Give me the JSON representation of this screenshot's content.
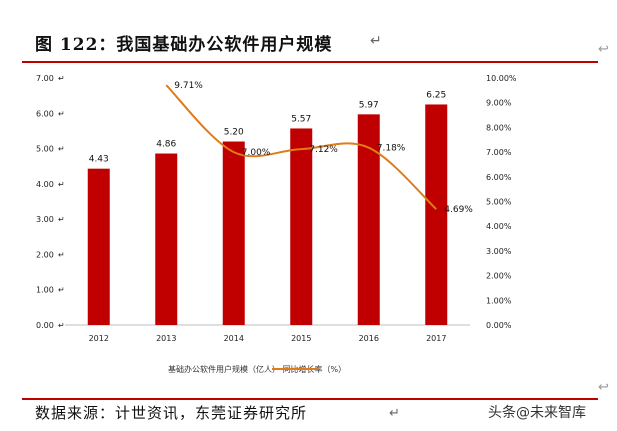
{
  "header": {
    "title": "图 122：我国基础办公软件用户规模"
  },
  "footer": {
    "source": "数据来源：计世资讯，东莞证券研究所",
    "watermark": "头条@未来智库"
  },
  "chart_data": {
    "type": "bar",
    "categories": [
      "2012",
      "2013",
      "2014",
      "2015",
      "2016",
      "2017"
    ],
    "series": [
      {
        "name": "基础办公软件用户规模（亿人）",
        "type": "bar",
        "axis": "left",
        "color": "#c00000",
        "values": [
          4.43,
          4.86,
          5.2,
          5.57,
          5.97,
          6.25
        ],
        "labels": [
          "4.43",
          "4.86",
          "5.20",
          "5.57",
          "5.97",
          "6.25"
        ]
      },
      {
        "name": "同比增长率（%）",
        "type": "line",
        "axis": "right",
        "color": "#e07b1a",
        "values": [
          null,
          9.71,
          7.0,
          7.12,
          7.18,
          4.69
        ],
        "labels": [
          "",
          "9.71%",
          "7.00%",
          "7.12%",
          "7.18%",
          "4.69%"
        ]
      }
    ],
    "y_left": {
      "min": 0,
      "max": 7,
      "ticks": [
        "0.00",
        "1.00",
        "2.00",
        "3.00",
        "4.00",
        "5.00",
        "6.00",
        "7.00"
      ]
    },
    "y_right": {
      "min": 0,
      "max": 10,
      "ticks": [
        "0.00%",
        "1.00%",
        "2.00%",
        "3.00%",
        "4.00%",
        "5.00%",
        "6.00%",
        "7.00%",
        "8.00%",
        "9.00%",
        "10.00%"
      ]
    },
    "legend_position": "bottom",
    "legend_text": "基础办公软件用户规模（亿人）    同比增长率（%）",
    "grid": false
  }
}
